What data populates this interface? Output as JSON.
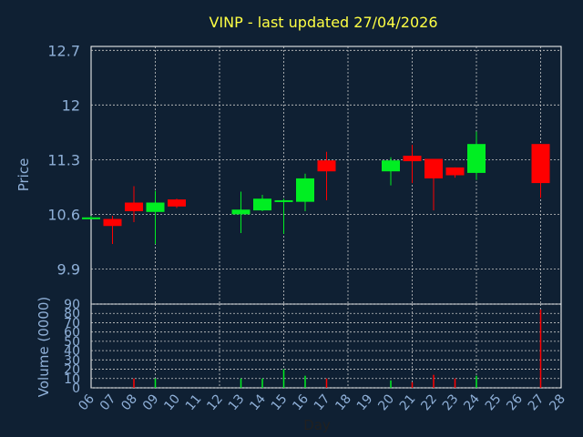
{
  "chart_data": [
    {
      "type": "candlestick",
      "title": "VINP - last updated 27/04/2026",
      "ylabel": "Price",
      "ylim": [
        9.45,
        12.75
      ],
      "yticks": [
        9.9,
        10.6,
        11.3,
        12,
        12.7
      ],
      "ytick_labels": [
        "9.9",
        "10.6",
        "11.3",
        "12",
        "12.7"
      ],
      "grid": true,
      "categories": [
        "06",
        "07",
        "08",
        "09",
        "10",
        "11",
        "12",
        "13",
        "14",
        "15",
        "16",
        "17",
        "18",
        "19",
        "20",
        "21",
        "22",
        "23",
        "24",
        "25",
        "26",
        "27",
        "28"
      ],
      "candles": [
        {
          "day": "06",
          "open": 10.56,
          "high": 10.58,
          "low": 10.55,
          "close": 10.56,
          "dir": "up"
        },
        {
          "day": "07",
          "open": 10.54,
          "high": 10.58,
          "low": 10.22,
          "close": 10.45,
          "dir": "down"
        },
        {
          "day": "08",
          "open": 10.75,
          "high": 10.96,
          "low": 10.5,
          "close": 10.64,
          "dir": "down"
        },
        {
          "day": "09",
          "open": 10.63,
          "high": 10.9,
          "low": 10.22,
          "close": 10.75,
          "dir": "up"
        },
        {
          "day": "10",
          "open": 10.79,
          "high": 10.8,
          "low": 10.68,
          "close": 10.7,
          "dir": "down"
        },
        {
          "day": "13",
          "open": 10.6,
          "high": 10.89,
          "low": 10.36,
          "close": 10.66,
          "dir": "up"
        },
        {
          "day": "14",
          "open": 10.65,
          "high": 10.85,
          "low": 10.64,
          "close": 10.8,
          "dir": "up"
        },
        {
          "day": "15",
          "open": 10.77,
          "high": 10.8,
          "low": 10.35,
          "close": 10.78,
          "dir": "up"
        },
        {
          "day": "16",
          "open": 10.76,
          "high": 11.12,
          "low": 10.64,
          "close": 11.06,
          "dir": "up"
        },
        {
          "day": "17",
          "open": 11.29,
          "high": 11.4,
          "low": 10.78,
          "close": 11.15,
          "dir": "down"
        },
        {
          "day": "20",
          "open": 11.15,
          "high": 11.33,
          "low": 10.97,
          "close": 11.29,
          "dir": "up"
        },
        {
          "day": "21",
          "open": 11.35,
          "high": 11.49,
          "low": 11.0,
          "close": 11.28,
          "dir": "down"
        },
        {
          "day": "22",
          "open": 11.31,
          "high": 11.31,
          "low": 10.65,
          "close": 11.06,
          "dir": "down"
        },
        {
          "day": "23",
          "open": 11.2,
          "high": 11.2,
          "low": 11.07,
          "close": 11.1,
          "dir": "down"
        },
        {
          "day": "24",
          "open": 11.13,
          "high": 11.66,
          "low": 11.04,
          "close": 11.5,
          "dir": "up"
        },
        {
          "day": "27",
          "open": 11.5,
          "high": 11.5,
          "low": 10.81,
          "close": 11.0,
          "dir": "down"
        }
      ]
    },
    {
      "type": "bar",
      "ylabel": "Volume (0000)",
      "xlabel": "Day",
      "ylim": [
        0,
        90
      ],
      "yticks": [
        0,
        10,
        20,
        30,
        40,
        50,
        60,
        70,
        80,
        90
      ],
      "ytick_labels": [
        "0",
        "10",
        "20",
        "30",
        "40",
        "50",
        "60",
        "70",
        "80",
        "90"
      ],
      "grid": true,
      "bars": [
        {
          "day": "08",
          "value": 10,
          "dir": "down"
        },
        {
          "day": "09",
          "value": 10,
          "dir": "up"
        },
        {
          "day": "13",
          "value": 10,
          "dir": "up"
        },
        {
          "day": "14",
          "value": 10,
          "dir": "up"
        },
        {
          "day": "15",
          "value": 20,
          "dir": "up"
        },
        {
          "day": "16",
          "value": 13,
          "dir": "up"
        },
        {
          "day": "17",
          "value": 10,
          "dir": "down"
        },
        {
          "day": "20",
          "value": 8,
          "dir": "up"
        },
        {
          "day": "21",
          "value": 6,
          "dir": "down"
        },
        {
          "day": "22",
          "value": 14,
          "dir": "down"
        },
        {
          "day": "23",
          "value": 10,
          "dir": "down"
        },
        {
          "day": "24",
          "value": 13,
          "dir": "up"
        },
        {
          "day": "27",
          "value": 84,
          "dir": "down"
        }
      ]
    }
  ],
  "colors": {
    "up": "#00ee22",
    "down": "#ff0000",
    "grid": "#c8c8c8",
    "frame": "#ffffff",
    "background": "#0f2033"
  }
}
